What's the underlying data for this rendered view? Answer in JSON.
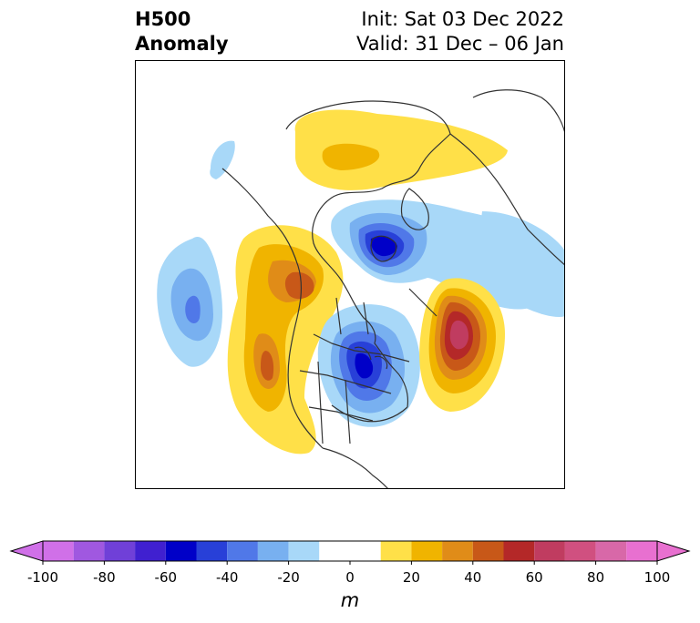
{
  "title": {
    "left_line1": "H500",
    "left_line2": "Anomaly",
    "right_line1": "Init: Sat 03 Dec 2022",
    "right_line2": "Valid: 31 Dec – 06 Jan"
  },
  "map": {
    "field": "500 hPa geopotential height anomaly",
    "features": [
      {
        "name": "positive-anomaly-greenland-arctic",
        "sign": "positive",
        "peak_m": 30
      },
      {
        "name": "negative-anomaly-hudson-bay",
        "sign": "negative",
        "peak_m": -60
      },
      {
        "name": "negative-anomaly-east-pacific",
        "sign": "negative",
        "peak_m": -40
      },
      {
        "name": "negative-anomaly-north-atlantic",
        "sign": "negative",
        "peak_m": -20
      },
      {
        "name": "positive-anomaly-alaska-western-canada",
        "sign": "positive",
        "peak_m": 50
      },
      {
        "name": "negative-anomaly-great-lakes",
        "sign": "negative",
        "peak_m": -60
      },
      {
        "name": "positive-anomaly-central-atlantic",
        "sign": "positive",
        "peak_m": 70
      },
      {
        "name": "negative-anomaly-east-asia",
        "sign": "negative",
        "peak_m": -20
      }
    ]
  },
  "colorbar": {
    "levels": [
      -100,
      -90,
      -80,
      -70,
      -60,
      -50,
      -40,
      -30,
      -20,
      -10,
      10,
      20,
      30,
      40,
      50,
      60,
      70,
      80,
      90,
      100
    ],
    "colors": [
      "#d070e8",
      "#a058e0",
      "#7040d8",
      "#4020d0",
      "#0000c8",
      "#2840d8",
      "#5078e8",
      "#78b0f0",
      "#a8d8f8",
      "#ffffff",
      "#ffe048",
      "#f0b400",
      "#e08c18",
      "#c85818",
      "#b42828",
      "#c03c60",
      "#d05080",
      "#d868a8",
      "#e870d0"
    ],
    "tick_labels": [
      "-100",
      "-80",
      "-60",
      "-40",
      "-20",
      "0",
      "20",
      "40",
      "60",
      "80",
      "100"
    ],
    "unit": "m"
  }
}
